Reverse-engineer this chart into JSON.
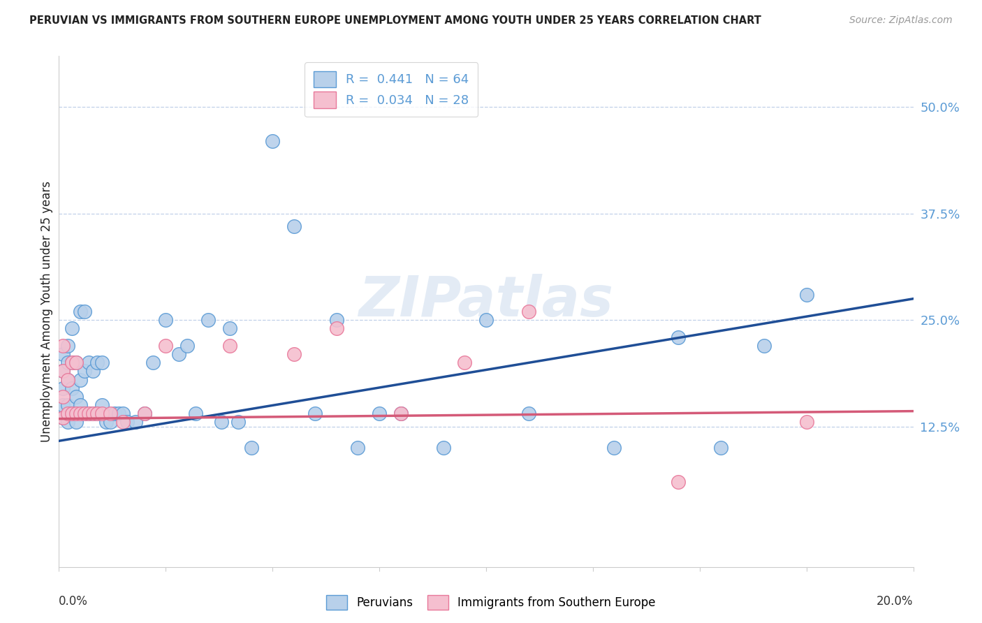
{
  "title": "PERUVIAN VS IMMIGRANTS FROM SOUTHERN EUROPE UNEMPLOYMENT AMONG YOUTH UNDER 25 YEARS CORRELATION CHART",
  "source": "Source: ZipAtlas.com",
  "ylabel": "Unemployment Among Youth under 25 years",
  "right_ytick_labels": [
    "50.0%",
    "37.5%",
    "25.0%",
    "12.5%"
  ],
  "right_ytick_values": [
    0.5,
    0.375,
    0.25,
    0.125
  ],
  "watermark": "ZIPatlas",
  "blue_color": "#5b9bd5",
  "pink_color": "#e8789a",
  "blue_scatter_face": "#b8d0ea",
  "pink_scatter_face": "#f5bfcf",
  "blue_line_color": "#1f4e96",
  "pink_line_color": "#d45a78",
  "xlim": [
    0.0,
    0.2
  ],
  "ylim": [
    -0.04,
    0.56
  ],
  "blue_trend_x0": 0.0,
  "blue_trend_y0": 0.108,
  "blue_trend_x1": 0.2,
  "blue_trend_y1": 0.275,
  "pink_trend_x0": 0.0,
  "pink_trend_y0": 0.134,
  "pink_trend_x1": 0.2,
  "pink_trend_y1": 0.143,
  "peruvians_x": [
    0.001,
    0.001,
    0.001,
    0.001,
    0.001,
    0.002,
    0.002,
    0.002,
    0.002,
    0.002,
    0.003,
    0.003,
    0.003,
    0.003,
    0.004,
    0.004,
    0.004,
    0.005,
    0.005,
    0.005,
    0.006,
    0.006,
    0.006,
    0.007,
    0.007,
    0.008,
    0.008,
    0.009,
    0.009,
    0.01,
    0.01,
    0.011,
    0.012,
    0.013,
    0.014,
    0.015,
    0.016,
    0.018,
    0.02,
    0.022,
    0.025,
    0.028,
    0.03,
    0.032,
    0.035,
    0.038,
    0.04,
    0.042,
    0.045,
    0.05,
    0.055,
    0.06,
    0.065,
    0.07,
    0.075,
    0.08,
    0.09,
    0.1,
    0.11,
    0.13,
    0.145,
    0.155,
    0.165,
    0.175
  ],
  "peruvians_y": [
    0.135,
    0.15,
    0.17,
    0.19,
    0.21,
    0.13,
    0.15,
    0.18,
    0.2,
    0.22,
    0.14,
    0.17,
    0.2,
    0.24,
    0.13,
    0.16,
    0.2,
    0.15,
    0.18,
    0.26,
    0.14,
    0.19,
    0.26,
    0.14,
    0.2,
    0.14,
    0.19,
    0.14,
    0.2,
    0.15,
    0.2,
    0.13,
    0.13,
    0.14,
    0.14,
    0.14,
    0.13,
    0.13,
    0.14,
    0.2,
    0.25,
    0.21,
    0.22,
    0.14,
    0.25,
    0.13,
    0.24,
    0.13,
    0.1,
    0.46,
    0.36,
    0.14,
    0.25,
    0.1,
    0.14,
    0.14,
    0.1,
    0.25,
    0.14,
    0.1,
    0.23,
    0.1,
    0.22,
    0.28
  ],
  "immigrants_x": [
    0.001,
    0.001,
    0.001,
    0.001,
    0.002,
    0.002,
    0.003,
    0.003,
    0.004,
    0.004,
    0.005,
    0.006,
    0.007,
    0.008,
    0.009,
    0.01,
    0.012,
    0.015,
    0.02,
    0.025,
    0.04,
    0.055,
    0.065,
    0.08,
    0.095,
    0.11,
    0.145,
    0.175
  ],
  "immigrants_y": [
    0.135,
    0.16,
    0.19,
    0.22,
    0.14,
    0.18,
    0.14,
    0.2,
    0.14,
    0.2,
    0.14,
    0.14,
    0.14,
    0.14,
    0.14,
    0.14,
    0.14,
    0.13,
    0.14,
    0.22,
    0.22,
    0.21,
    0.24,
    0.14,
    0.2,
    0.26,
    0.06,
    0.13
  ]
}
